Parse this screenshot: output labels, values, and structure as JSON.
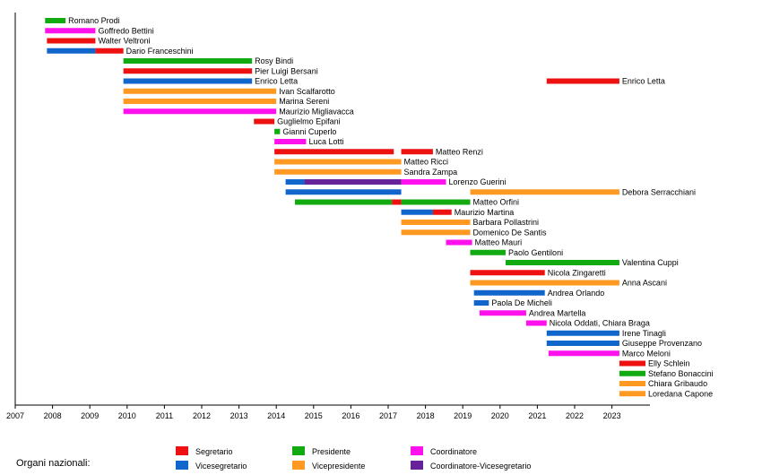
{
  "chart_data": {
    "type": "timeline",
    "title": "",
    "xlabel": "",
    "ylabel": "",
    "xlim": [
      2007,
      2024
    ],
    "x_ticks": [
      "2007",
      "2008",
      "2009",
      "2010",
      "2011",
      "2012",
      "2013",
      "2014",
      "2015",
      "2016",
      "2017",
      "2018",
      "2019",
      "2020",
      "2021",
      "2022",
      "2023"
    ],
    "grid": false,
    "legend": {
      "title": "Organi nazionali:",
      "placement": "bottom",
      "entries": [
        {
          "role": "segretario",
          "label": "Segretario",
          "color": "#ee1111"
        },
        {
          "role": "vicesegretario",
          "label": "Vicesegretario",
          "color": "#1166cc"
        },
        {
          "role": "presidente",
          "label": "Presidente",
          "color": "#11aa11"
        },
        {
          "role": "vicepresidente",
          "label": "Vicepresidente",
          "color": "#ff9922"
        },
        {
          "role": "coordinatore",
          "label": "Coordinatore",
          "color": "#ff11ee"
        },
        {
          "role": "coordvice",
          "label": "Coordinatore-Vicesegretario",
          "color": "#662299"
        }
      ]
    },
    "rows": [
      {
        "name": "Romano Prodi",
        "segments": [
          {
            "role": "presidente",
            "start": 2007.8,
            "end": 2008.35
          }
        ]
      },
      {
        "name": "Goffredo Bettini",
        "segments": [
          {
            "role": "coordinatore",
            "start": 2007.8,
            "end": 2009.15
          }
        ]
      },
      {
        "name": "Walter Veltroni",
        "segments": [
          {
            "role": "segretario",
            "start": 2007.85,
            "end": 2009.15
          }
        ]
      },
      {
        "name": "Dario Franceschini",
        "segments": [
          {
            "role": "vicesegretario",
            "start": 2007.85,
            "end": 2009.15
          },
          {
            "role": "segretario",
            "start": 2009.15,
            "end": 2009.9
          }
        ]
      },
      {
        "name": "Rosy Bindi",
        "segments": [
          {
            "role": "presidente",
            "start": 2009.9,
            "end": 2013.35
          }
        ]
      },
      {
        "name": "Pier Luigi Bersani",
        "segments": [
          {
            "role": "segretario",
            "start": 2009.9,
            "end": 2013.35
          }
        ]
      },
      {
        "name": "Enrico Letta",
        "label_pos": "first",
        "segments": [
          {
            "role": "vicesegretario",
            "start": 2009.9,
            "end": 2013.35
          },
          {
            "role": "segretario",
            "start": 2021.25,
            "end": 2023.2
          }
        ]
      },
      {
        "name": "Ivan Scalfarotto",
        "segments": [
          {
            "role": "vicepresidente",
            "start": 2009.9,
            "end": 2014.0
          }
        ]
      },
      {
        "name": "Marina Sereni",
        "segments": [
          {
            "role": "vicepresidente",
            "start": 2009.9,
            "end": 2014.0
          }
        ]
      },
      {
        "name": "Maurizio Migliavacca",
        "segments": [
          {
            "role": "coordinatore",
            "start": 2009.9,
            "end": 2014.0
          }
        ]
      },
      {
        "name": "Guglielmo Epifani",
        "segments": [
          {
            "role": "segretario",
            "start": 2013.4,
            "end": 2013.95
          }
        ]
      },
      {
        "name": "Gianni Cuperlo",
        "segments": [
          {
            "role": "presidente",
            "start": 2013.95,
            "end": 2014.1
          }
        ]
      },
      {
        "name": "Luca Lotti",
        "segments": [
          {
            "role": "coordinatore",
            "start": 2013.95,
            "end": 2014.8
          }
        ]
      },
      {
        "name": "Matteo Renzi",
        "segments": [
          {
            "role": "segretario",
            "start": 2013.95,
            "end": 2017.15
          },
          {
            "role": "segretario",
            "start": 2017.35,
            "end": 2018.2
          }
        ]
      },
      {
        "name": "Matteo Ricci",
        "segments": [
          {
            "role": "vicepresidente",
            "start": 2013.95,
            "end": 2017.35
          }
        ]
      },
      {
        "name": "Sandra Zampa",
        "segments": [
          {
            "role": "vicepresidente",
            "start": 2013.95,
            "end": 2017.35
          }
        ]
      },
      {
        "name": "Lorenzo Guerini",
        "segments": [
          {
            "role": "vicesegretario",
            "start": 2014.25,
            "end": 2014.75
          },
          {
            "role": "coordvice",
            "start": 2014.75,
            "end": 2017.35
          },
          {
            "role": "coordinatore",
            "start": 2017.35,
            "end": 2018.55
          }
        ]
      },
      {
        "name": "Debora Serracchiani",
        "segments": [
          {
            "role": "vicesegretario",
            "start": 2014.25,
            "end": 2017.35
          },
          {
            "role": "vicepresidente",
            "start": 2019.2,
            "end": 2023.2
          }
        ]
      },
      {
        "name": "Matteo Orfini",
        "segments": [
          {
            "role": "presidente",
            "start": 2014.5,
            "end": 2017.1
          },
          {
            "role": "segretario",
            "start": 2017.1,
            "end": 2017.35
          },
          {
            "role": "presidente",
            "start": 2017.35,
            "end": 2019.2
          }
        ]
      },
      {
        "name": "Maurizio Martina",
        "segments": [
          {
            "role": "vicesegretario",
            "start": 2017.35,
            "end": 2018.2
          },
          {
            "role": "segretario",
            "start": 2018.2,
            "end": 2018.7
          }
        ]
      },
      {
        "name": "Barbara Pollastrini",
        "segments": [
          {
            "role": "vicepresidente",
            "start": 2017.35,
            "end": 2019.2
          }
        ]
      },
      {
        "name": "Domenico De Santis",
        "segments": [
          {
            "role": "vicepresidente",
            "start": 2017.35,
            "end": 2019.2
          }
        ]
      },
      {
        "name": "Matteo Mauri",
        "segments": [
          {
            "role": "coordinatore",
            "start": 2018.55,
            "end": 2019.25
          }
        ]
      },
      {
        "name": "Paolo Gentiloni",
        "segments": [
          {
            "role": "presidente",
            "start": 2019.2,
            "end": 2020.15
          }
        ]
      },
      {
        "name": "Valentina Cuppi",
        "segments": [
          {
            "role": "presidente",
            "start": 2020.15,
            "end": 2023.2
          }
        ]
      },
      {
        "name": "Nicola Zingaretti",
        "segments": [
          {
            "role": "segretario",
            "start": 2019.2,
            "end": 2021.2
          }
        ]
      },
      {
        "name": "Anna Ascani",
        "segments": [
          {
            "role": "vicepresidente",
            "start": 2019.2,
            "end": 2023.2
          }
        ]
      },
      {
        "name": "Andrea Orlando",
        "segments": [
          {
            "role": "vicesegretario",
            "start": 2019.3,
            "end": 2021.2
          }
        ]
      },
      {
        "name": "Paola De Micheli",
        "segments": [
          {
            "role": "vicesegretario",
            "start": 2019.3,
            "end": 2019.7
          }
        ]
      },
      {
        "name": "Andrea Martella",
        "segments": [
          {
            "role": "coordinatore",
            "start": 2019.45,
            "end": 2020.7
          }
        ]
      },
      {
        "name": "Nicola Oddati, Chiara Braga",
        "segments": [
          {
            "role": "coordinatore",
            "start": 2020.7,
            "end": 2021.25
          }
        ]
      },
      {
        "name": "Irene Tinagli",
        "segments": [
          {
            "role": "vicesegretario",
            "start": 2021.25,
            "end": 2023.2
          }
        ]
      },
      {
        "name": "Giuseppe Provenzano",
        "segments": [
          {
            "role": "vicesegretario",
            "start": 2021.25,
            "end": 2023.2
          }
        ]
      },
      {
        "name": "Marco Meloni",
        "segments": [
          {
            "role": "coordinatore",
            "start": 2021.3,
            "end": 2023.2
          }
        ]
      },
      {
        "name": "Elly Schlein",
        "segments": [
          {
            "role": "segretario",
            "start": 2023.2,
            "end": 2023.9
          }
        ]
      },
      {
        "name": "Stefano Bonaccini",
        "segments": [
          {
            "role": "presidente",
            "start": 2023.2,
            "end": 2023.9
          }
        ]
      },
      {
        "name": "Chiara Gribaudo",
        "segments": [
          {
            "role": "vicepresidente",
            "start": 2023.2,
            "end": 2023.9
          }
        ]
      },
      {
        "name": "Loredana Capone",
        "segments": [
          {
            "role": "vicepresidente",
            "start": 2023.2,
            "end": 2023.9
          }
        ]
      }
    ]
  }
}
